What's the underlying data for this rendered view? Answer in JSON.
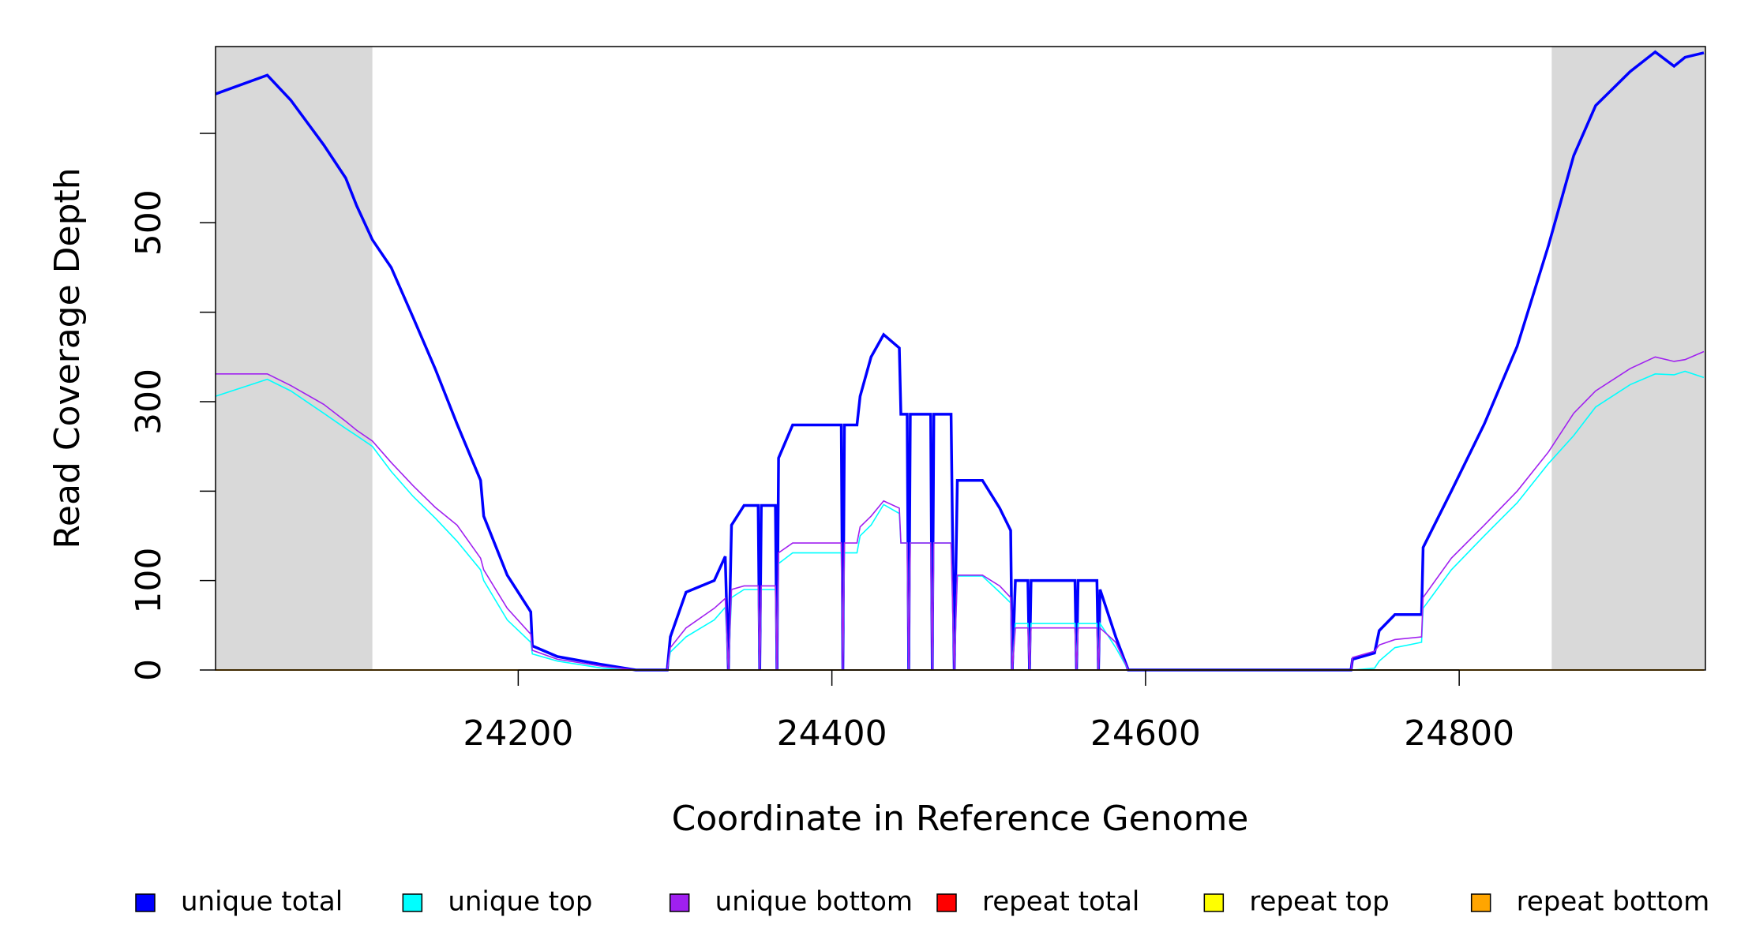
{
  "chart_data": {
    "type": "line",
    "x_label": "Coordinate in Reference Genome",
    "y_label": "Read Coverage Depth",
    "xlim": [
      24007,
      24957
    ],
    "ylim": [
      0,
      697
    ],
    "xticks": [
      24200,
      24400,
      24600,
      24800
    ],
    "yticks": [
      0,
      100,
      {
        "value": 200,
        "label": null
      },
      300,
      {
        "value": 400,
        "label": null
      },
      500,
      {
        "value": 600,
        "label": null
      }
    ],
    "shaded_regions": [
      [
        24007,
        24107
      ],
      [
        24859,
        24957
      ]
    ],
    "shade_color": "#d9d9d9",
    "legend": "bottom",
    "x": [
      24007,
      24040,
      24055,
      24076,
      24090,
      24097,
      24107,
      24119,
      24133,
      24147,
      24161,
      24176,
      24178,
      24193,
      24208,
      24209,
      24225,
      24254,
      24275,
      24295,
      24297,
      24307,
      24325,
      24332,
      24334,
      24336,
      24344,
      24353,
      24354,
      24355,
      24364,
      24365,
      24366,
      24375,
      24406,
      24407,
      24408,
      24416,
      24418,
      24425,
      24433,
      24443,
      24444,
      24448,
      24449,
      24450,
      24463,
      24464,
      24465,
      24476,
      24478,
      24480,
      24496,
      24507,
      24514,
      24515,
      24517,
      24525,
      24526,
      24527,
      24555,
      24556,
      24557,
      24569,
      24570,
      24571,
      24581,
      24589,
      24731,
      24732,
      24746,
      24749,
      24759,
      24776,
      24777,
      24795,
      24816,
      24837,
      24857,
      24873,
      24887,
      24909,
      24925,
      24937,
      24944,
      24956
    ],
    "series": [
      {
        "name": "unique total",
        "color": "#0000ff",
        "width": 3.5,
        "values": [
          644,
          665,
          637,
          587,
          550,
          519,
          481,
          450,
          394,
          337,
          275,
          212,
          172,
          106,
          65,
          27,
          15,
          6,
          0,
          0,
          37,
          87,
          100,
          127,
          0,
          162,
          184,
          184,
          0,
          184,
          184,
          0,
          237,
          274,
          274,
          0,
          274,
          274,
          306,
          350,
          375,
          360,
          286,
          286,
          0,
          286,
          286,
          0,
          286,
          286,
          0,
          212,
          212,
          181,
          156,
          0,
          100,
          100,
          0,
          100,
          100,
          0,
          100,
          100,
          0,
          90,
          37,
          0,
          0,
          12,
          19,
          44,
          62,
          62,
          137,
          200,
          275,
          362,
          475,
          575,
          631,
          669,
          691,
          675,
          685,
          690
        ]
      },
      {
        "name": "unique top",
        "color": "#00ffff",
        "width": 1.6,
        "values": [
          306,
          325,
          312,
          287,
          270,
          262,
          250,
          222,
          194,
          170,
          144,
          112,
          100,
          56,
          31,
          18,
          10,
          2,
          0,
          0,
          20,
          37,
          56,
          70,
          0,
          81,
          90,
          90,
          0,
          90,
          90,
          0,
          119,
          131,
          131,
          0,
          131,
          131,
          150,
          162,
          185,
          175,
          142,
          142,
          0,
          142,
          142,
          0,
          142,
          142,
          0,
          105,
          105,
          87,
          75,
          0,
          52,
          52,
          0,
          52,
          52,
          0,
          52,
          52,
          0,
          52,
          25,
          0,
          0,
          0,
          2,
          10,
          25,
          31,
          69,
          112,
          150,
          187,
          231,
          262,
          294,
          319,
          331,
          330,
          334,
          327
        ]
      },
      {
        "name": "unique bottom",
        "color": "#a020f0",
        "width": 1.6,
        "values": [
          331,
          331,
          318,
          297,
          278,
          268,
          256,
          232,
          206,
          182,
          162,
          125,
          112,
          69,
          40,
          22,
          12,
          4,
          0,
          0,
          25,
          47,
          69,
          80,
          0,
          90,
          94,
          94,
          0,
          94,
          94,
          0,
          131,
          142,
          142,
          0,
          142,
          142,
          160,
          172,
          189,
          181,
          142,
          142,
          0,
          142,
          142,
          0,
          142,
          142,
          0,
          106,
          106,
          94,
          81,
          0,
          47,
          47,
          0,
          47,
          47,
          0,
          47,
          47,
          0,
          47,
          31,
          0,
          0,
          14,
          21,
          28,
          34,
          37,
          81,
          125,
          162,
          200,
          244,
          287,
          312,
          337,
          350,
          345,
          347,
          356
        ]
      },
      {
        "name": "repeat total",
        "color": "#ff0000",
        "width": 1.6,
        "values": [
          0,
          0,
          0,
          0,
          0,
          0,
          0,
          0,
          0,
          0,
          0,
          0,
          0,
          0,
          0,
          0,
          0,
          0,
          0,
          0,
          0,
          0,
          0,
          0,
          0,
          0,
          0,
          0,
          0,
          0,
          0,
          0,
          0,
          0,
          0,
          0,
          0,
          0,
          0,
          0,
          0,
          0,
          0,
          0,
          0,
          0,
          0,
          0,
          0,
          0,
          0,
          0,
          0,
          0,
          0,
          0,
          0,
          0,
          0,
          0,
          0,
          0,
          0,
          0,
          0,
          0,
          0,
          0,
          0,
          0,
          0,
          0,
          0,
          0,
          0,
          0,
          0,
          0,
          0,
          0,
          0,
          0,
          0,
          0,
          0,
          0
        ]
      },
      {
        "name": "repeat top",
        "color": "#ffff00",
        "width": 1.6,
        "values": [
          0,
          0,
          0,
          0,
          0,
          0,
          0,
          0,
          0,
          0,
          0,
          0,
          0,
          0,
          0,
          0,
          0,
          0,
          0,
          0,
          0,
          0,
          0,
          0,
          0,
          0,
          0,
          0,
          0,
          0,
          0,
          0,
          0,
          0,
          0,
          0,
          0,
          0,
          0,
          0,
          0,
          0,
          0,
          0,
          0,
          0,
          0,
          0,
          0,
          0,
          0,
          0,
          0,
          0,
          0,
          0,
          0,
          0,
          0,
          0,
          0,
          0,
          0,
          0,
          0,
          0,
          0,
          0,
          0,
          0,
          0,
          0,
          0,
          0,
          0,
          0,
          0,
          0,
          0,
          0,
          0,
          0,
          0,
          0,
          0,
          0
        ]
      },
      {
        "name": "repeat bottom",
        "color": "#ffa500",
        "width": 2,
        "values": [
          0,
          0,
          0,
          0,
          0,
          0,
          0,
          0,
          0,
          0,
          0,
          0,
          0,
          0,
          0,
          0,
          0,
          0,
          0,
          0,
          0,
          0,
          0,
          0,
          0,
          0,
          0,
          0,
          0,
          0,
          0,
          0,
          0,
          0,
          0,
          0,
          0,
          0,
          0,
          0,
          0,
          0,
          0,
          0,
          0,
          0,
          0,
          0,
          0,
          0,
          0,
          0,
          0,
          0,
          0,
          0,
          0,
          0,
          0,
          0,
          0,
          0,
          0,
          0,
          0,
          0,
          0,
          0,
          0,
          0,
          0,
          0,
          0,
          0,
          0,
          0,
          0,
          0,
          0,
          0,
          0,
          0,
          0,
          0,
          0,
          0
        ]
      }
    ]
  }
}
